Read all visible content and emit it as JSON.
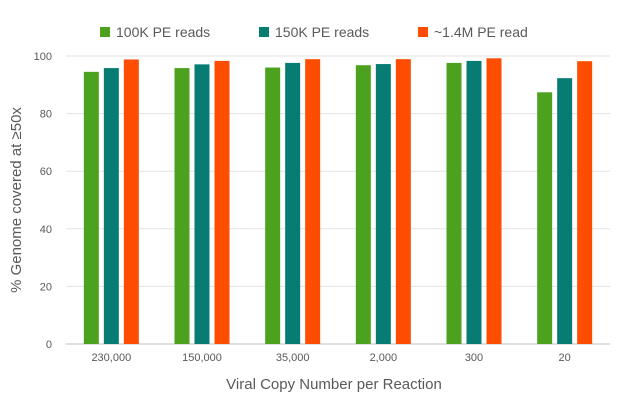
{
  "chart_data": {
    "type": "bar",
    "title": "",
    "xlabel": "Viral Copy Number per Reaction",
    "ylabel": "% Genome covered at ≥50x",
    "ylim": [
      0,
      100
    ],
    "yticks": [
      0,
      20,
      40,
      60,
      80,
      100
    ],
    "grid": true,
    "legend_position": "top",
    "categories": [
      "230,000",
      "150,000",
      "35,000",
      "2,000",
      "300",
      "20"
    ],
    "series": [
      {
        "name": "100K PE reads",
        "color": "#4ca21f",
        "values": [
          94.5,
          95.8,
          96.0,
          96.8,
          97.6,
          87.4
        ]
      },
      {
        "name": "150K PE reads",
        "color": "#077c72",
        "values": [
          95.8,
          97.1,
          97.6,
          97.2,
          98.3,
          92.3
        ]
      },
      {
        "name": "~1.4M PE read",
        "color": "#fe4d00",
        "values": [
          98.8,
          98.3,
          98.9,
          98.9,
          99.2,
          98.2
        ]
      }
    ]
  }
}
